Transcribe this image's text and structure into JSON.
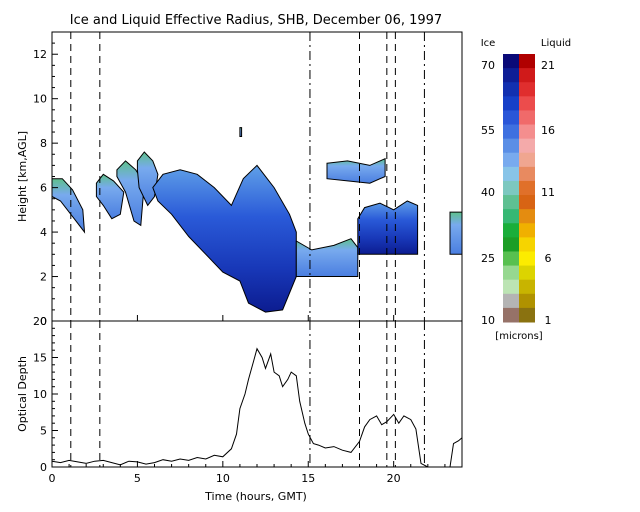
{
  "chart_data": [
    {
      "type": "heatmap",
      "title": "Ice and Liquid Effective Radius, SHB, December 06, 1997",
      "xlabel": "",
      "ylabel": "Height [km,AGL]",
      "xlim": [
        0,
        24
      ],
      "ylim": [
        0,
        13
      ],
      "yticks": [
        0,
        2,
        4,
        6,
        8,
        10,
        12
      ],
      "xticks": [
        0,
        5,
        10,
        15,
        20
      ],
      "dashed_x": [
        1.1,
        2.8,
        18.0,
        19.6,
        20.1
      ],
      "dashdot_x": [
        15.1,
        21.8
      ],
      "cloud_regions": [
        {
          "kind": "ice",
          "label": "slanted band 1",
          "x": [
            0.0,
            0.6,
            1.2,
            1.8,
            1.9,
            1.3,
            0.5,
            0.0
          ],
          "y": [
            6.4,
            6.4,
            5.9,
            5.0,
            4.0,
            4.6,
            5.4,
            5.6
          ]
        },
        {
          "kind": "ice",
          "label": "slanted band 2",
          "x": [
            2.6,
            3.0,
            3.6,
            4.2,
            4.0,
            3.5,
            3.0,
            2.6
          ],
          "y": [
            6.2,
            6.6,
            6.3,
            5.8,
            4.8,
            4.6,
            5.2,
            5.6
          ]
        },
        {
          "kind": "ice",
          "label": "slanted band 3",
          "x": [
            3.8,
            4.3,
            4.9,
            5.4,
            5.2,
            4.8,
            4.3,
            3.8
          ],
          "y": [
            6.8,
            7.2,
            6.8,
            6.2,
            4.3,
            4.5,
            5.8,
            6.5
          ]
        },
        {
          "kind": "ice",
          "label": "slanted band 4",
          "x": [
            5.0,
            5.4,
            5.9,
            6.2,
            6.0,
            5.6,
            5.1,
            5.0
          ],
          "y": [
            7.2,
            7.6,
            7.2,
            6.6,
            5.6,
            5.2,
            6.0,
            6.8
          ]
        },
        {
          "kind": "ice",
          "label": "main descending band",
          "x": [
            5.9,
            6.5,
            7.5,
            8.5,
            9.5,
            10.5,
            11.2,
            12.0,
            13.0,
            13.9,
            14.3,
            14.3,
            13.5,
            12.5,
            11.5,
            11.0,
            10.0,
            9.0,
            8.0,
            7.0,
            6.2,
            5.9
          ],
          "y": [
            6.0,
            6.6,
            6.8,
            6.6,
            6.0,
            5.2,
            6.4,
            7.0,
            6.0,
            4.8,
            4.0,
            2.0,
            0.5,
            0.4,
            0.8,
            1.8,
            2.2,
            3.0,
            3.8,
            4.8,
            5.4,
            6.0
          ]
        },
        {
          "kind": "ice",
          "label": "low layer to 18 h",
          "x": [
            14.3,
            15.2,
            16.5,
            17.5,
            17.9,
            17.9,
            14.3
          ],
          "y": [
            3.6,
            3.2,
            3.4,
            3.7,
            3.3,
            2.0,
            2.0
          ]
        },
        {
          "kind": "ice",
          "label": "deep layer 18-21.5 h",
          "x": [
            17.9,
            18.3,
            19.2,
            20.0,
            20.8,
            21.4,
            21.4,
            17.9
          ],
          "y": [
            4.6,
            5.1,
            5.3,
            5.0,
            5.4,
            5.2,
            3.0,
            3.0
          ]
        },
        {
          "kind": "ice",
          "label": "upper layer 16-19.5 h",
          "x": [
            16.1,
            17.3,
            18.6,
            19.5,
            19.5,
            18.6,
            17.3,
            16.1
          ],
          "y": [
            7.1,
            7.2,
            7.0,
            7.3,
            6.5,
            6.2,
            6.3,
            6.4
          ]
        },
        {
          "kind": "ice",
          "label": "late layer",
          "x": [
            23.3,
            24.0,
            24.0,
            23.3
          ],
          "y": [
            4.9,
            4.9,
            3.0,
            3.0
          ]
        },
        {
          "kind": "ice",
          "label": "isolated patch",
          "x": [
            11.0,
            11.1,
            11.1,
            11.0
          ],
          "y": [
            8.7,
            8.7,
            8.3,
            8.3
          ]
        }
      ]
    },
    {
      "type": "line",
      "xlabel": "Time (hours, GMT)",
      "ylabel": "Optical Depth",
      "xlim": [
        0,
        24
      ],
      "ylim": [
        0,
        20
      ],
      "yticks": [
        0,
        5,
        10,
        15,
        20
      ],
      "xticks": [
        0,
        5,
        10,
        15,
        20
      ],
      "dashed_x": [
        1.1,
        2.8,
        18.0,
        19.6,
        20.1
      ],
      "dashdot_x": [
        15.1,
        21.8
      ],
      "series": [
        {
          "x": [
            0.0,
            0.5,
            1.0,
            1.5,
            2.0,
            2.5,
            3.0,
            3.5,
            4.0,
            4.5,
            5.0,
            5.5,
            6.0,
            6.5,
            7.0,
            7.5,
            8.0,
            8.5,
            9.0,
            9.5,
            10.0,
            10.5,
            10.8,
            11.0,
            11.3,
            11.5,
            11.8,
            12.0,
            12.3,
            12.5,
            12.8,
            13.0,
            13.3,
            13.5,
            13.8,
            14.0,
            14.3,
            14.5,
            14.8,
            15.0,
            15.3,
            15.6,
            16.0,
            16.5,
            17.0,
            17.5,
            18.0,
            18.3,
            18.6,
            19.0,
            19.3,
            19.6,
            20.0,
            20.3,
            20.6,
            21.0,
            21.3,
            21.6,
            22.0,
            22.5,
            23.0,
            23.3,
            23.5,
            23.8,
            24.0
          ],
          "y": [
            0.8,
            0.6,
            0.9,
            0.7,
            0.5,
            0.8,
            0.9,
            0.6,
            0.3,
            0.8,
            0.7,
            0.4,
            0.6,
            1.0,
            0.8,
            1.1,
            0.9,
            1.3,
            1.1,
            1.6,
            1.4,
            2.5,
            4.5,
            8.0,
            10.0,
            12.0,
            14.5,
            16.2,
            15.0,
            13.5,
            15.5,
            13.0,
            12.5,
            11.0,
            12.0,
            13.0,
            12.5,
            9.0,
            6.0,
            4.5,
            3.2,
            3.0,
            2.6,
            2.8,
            2.3,
            2.0,
            3.5,
            5.5,
            6.5,
            7.0,
            5.8,
            6.2,
            7.2,
            6.0,
            7.0,
            6.5,
            5.2,
            0.5,
            0.0,
            0.0,
            0.0,
            0.0,
            3.2,
            3.6,
            4.0
          ]
        }
      ]
    }
  ],
  "colorbar": {
    "ice_label": "Ice",
    "liquid_label": "Liquid",
    "units": "[microns]",
    "ice_ticks": [
      "70",
      "55",
      "40",
      "25",
      "10"
    ],
    "liquid_ticks": [
      "21",
      "16",
      "11",
      "6",
      "1"
    ],
    "ice_colors": [
      "#0a0a78",
      "#0e1e96",
      "#1230b0",
      "#1640c8",
      "#2a56d8",
      "#3e70e0",
      "#5a8ee6",
      "#78aaee",
      "#88c4e8",
      "#7cc8c0",
      "#5ec092",
      "#36b874",
      "#1aae3a",
      "#1c9e26",
      "#58c050",
      "#96d890",
      "#bce4b4",
      "#b4b4b4",
      "#967268"
    ],
    "liquid_colors": [
      "#b00000",
      "#d01a1a",
      "#e02e2e",
      "#ec4c4c",
      "#f06a6a",
      "#f48e8e",
      "#f4aaaa",
      "#f0a690",
      "#e88a60",
      "#e0702a",
      "#d86414",
      "#e48c10",
      "#f0b000",
      "#f6d400",
      "#fcec00",
      "#dcd400",
      "#c8b400",
      "#b09200",
      "#8a7210"
    ]
  }
}
